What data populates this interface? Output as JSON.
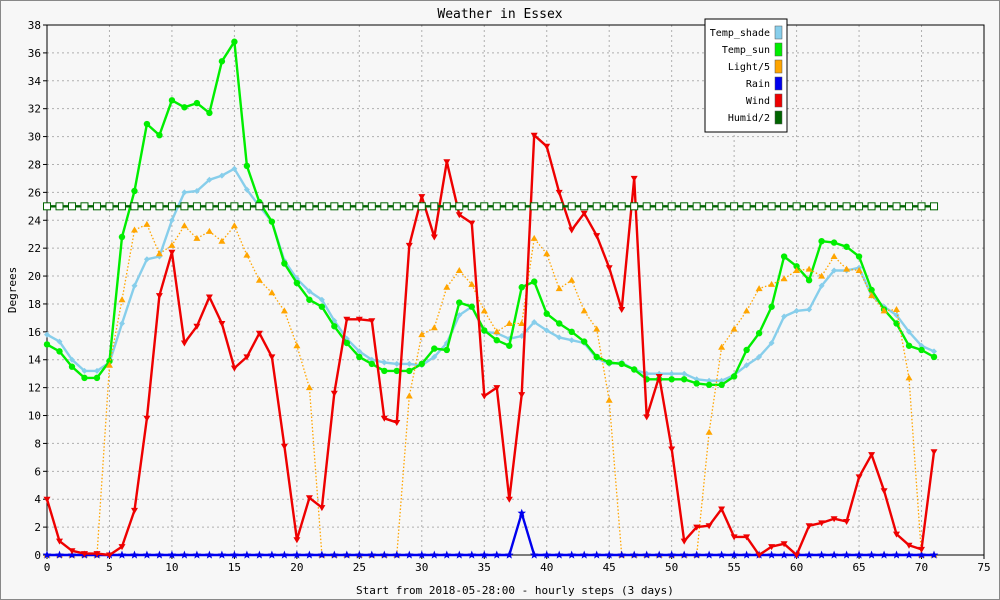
{
  "chart_data": {
    "type": "line",
    "title": "Weather in Essex",
    "xlabel": "Start from 2018-05-28:00 - hourly steps (3 days)",
    "ylabel": "Degrees",
    "xlim": [
      0,
      75
    ],
    "ylim": [
      0,
      38
    ],
    "xticks": [
      0,
      5,
      10,
      15,
      20,
      25,
      30,
      35,
      40,
      45,
      50,
      55,
      60,
      65,
      70,
      75
    ],
    "yticks": [
      0,
      2,
      4,
      6,
      8,
      10,
      12,
      14,
      16,
      18,
      20,
      22,
      24,
      26,
      28,
      30,
      32,
      34,
      36,
      38
    ],
    "grid": true,
    "legend_position": "top-right",
    "x": [
      0,
      1,
      2,
      3,
      4,
      5,
      6,
      7,
      8,
      9,
      10,
      11,
      12,
      13,
      14,
      15,
      16,
      17,
      18,
      19,
      20,
      21,
      22,
      23,
      24,
      25,
      26,
      27,
      28,
      29,
      30,
      31,
      32,
      33,
      34,
      35,
      36,
      37,
      38,
      39,
      40,
      41,
      42,
      43,
      44,
      45,
      46,
      47,
      48,
      49,
      50,
      51,
      52,
      53,
      54,
      55,
      56,
      57,
      58,
      59,
      60,
      61,
      62,
      63,
      64,
      65,
      66,
      67,
      68,
      69,
      70,
      71
    ],
    "series": [
      {
        "name": "Temp_shade",
        "color": "#87ceeb",
        "style": "solid",
        "marker": "diamond",
        "values": [
          15.8,
          15.3,
          14.0,
          13.2,
          13.2,
          13.8,
          16.6,
          19.3,
          21.2,
          21.4,
          24.0,
          26.0,
          26.1,
          26.9,
          27.2,
          27.7,
          26.2,
          25.0,
          23.9,
          21.1,
          19.8,
          18.9,
          18.3,
          16.8,
          15.5,
          14.6,
          14.0,
          13.8,
          13.7,
          13.7,
          13.6,
          14.2,
          15.2,
          17.2,
          17.8,
          16.0,
          15.9,
          15.5,
          15.7,
          16.7,
          16.1,
          15.6,
          15.4,
          15.2,
          14.1,
          13.7,
          13.8,
          13.3,
          13.0,
          13.0,
          13.0,
          13.0,
          12.6,
          12.5,
          12.5,
          12.9,
          13.6,
          14.2,
          15.2,
          17.1,
          17.5,
          17.6,
          19.3,
          20.4,
          20.4,
          20.6,
          18.6,
          17.8,
          17.2,
          16.0,
          15.0,
          14.6
        ]
      },
      {
        "name": "Temp_sun",
        "color": "#00ee00",
        "style": "solid",
        "marker": "circle",
        "values": [
          15.1,
          14.6,
          13.5,
          12.7,
          12.7,
          13.9,
          22.8,
          26.1,
          30.9,
          30.1,
          32.6,
          32.1,
          32.4,
          31.7,
          35.4,
          36.8,
          27.9,
          25.3,
          23.9,
          20.9,
          19.5,
          18.3,
          17.8,
          16.4,
          15.2,
          14.2,
          13.7,
          13.2,
          13.2,
          13.2,
          13.7,
          14.8,
          14.7,
          18.1,
          17.8,
          16.1,
          15.4,
          15.0,
          19.2,
          19.6,
          17.3,
          16.6,
          16.0,
          15.3,
          14.2,
          13.8,
          13.7,
          13.3,
          12.6,
          12.6,
          12.6,
          12.6,
          12.3,
          12.2,
          12.2,
          12.8,
          14.7,
          15.9,
          17.8,
          21.4,
          20.7,
          19.7,
          22.5,
          22.4,
          22.1,
          21.4,
          19.0,
          17.6,
          16.6,
          15.0,
          14.7,
          14.2
        ]
      },
      {
        "name": "Light/5",
        "color": "#ffa500",
        "style": "dotted",
        "marker": "triangle-up",
        "values": [
          0,
          0,
          0,
          0,
          0,
          13.6,
          18.3,
          23.3,
          23.7,
          21.6,
          22.2,
          23.6,
          22.7,
          23.2,
          22.5,
          23.6,
          21.5,
          19.7,
          18.8,
          17.5,
          15.0,
          12.0,
          0,
          0,
          0,
          0,
          0,
          0,
          0,
          11.4,
          15.8,
          16.3,
          19.2,
          20.4,
          19.4,
          17.5,
          16.0,
          16.6,
          16.6,
          22.7,
          21.6,
          19.1,
          19.7,
          17.5,
          16.2,
          11.1,
          0,
          0,
          0,
          0,
          0,
          0,
          0,
          8.8,
          14.9,
          16.2,
          17.5,
          19.1,
          19.4,
          19.8,
          20.4,
          20.5,
          20.0,
          21.4,
          20.5,
          20.4,
          18.6,
          17.5,
          17.6,
          12.7,
          0,
          0
        ]
      },
      {
        "name": "Rain",
        "color": "#0000ee",
        "style": "solid",
        "marker": "star",
        "values": [
          0,
          0,
          0,
          0,
          0,
          0,
          0,
          0,
          0,
          0,
          0,
          0,
          0,
          0,
          0,
          0,
          0,
          0,
          0,
          0,
          0,
          0,
          0,
          0,
          0,
          0,
          0,
          0,
          0,
          0,
          0,
          0,
          0,
          0,
          0,
          0,
          0,
          0,
          3.0,
          0,
          0,
          0,
          0,
          0,
          0,
          0,
          0,
          0,
          0,
          0,
          0,
          0,
          0,
          0,
          0,
          0,
          0,
          0,
          0,
          0,
          0,
          0,
          0,
          0,
          0,
          0,
          0,
          0,
          0,
          0,
          0,
          0
        ]
      },
      {
        "name": "Wind",
        "color": "#ee0000",
        "style": "solid",
        "marker": "triangle-down",
        "values": [
          4.0,
          1.0,
          0.3,
          0.1,
          0.1,
          0,
          0.6,
          3.2,
          9.8,
          18.6,
          21.7,
          15.2,
          16.4,
          18.5,
          16.6,
          13.4,
          14.2,
          15.9,
          14.2,
          7.8,
          1.1,
          4.1,
          3.4,
          11.6,
          16.9,
          16.9,
          16.8,
          9.8,
          9.5,
          22.2,
          25.7,
          22.8,
          28.2,
          24.4,
          23.8,
          11.4,
          12.0,
          4.0,
          11.5,
          30.1,
          29.3,
          26.0,
          23.3,
          24.5,
          22.9,
          20.6,
          17.6,
          27.0,
          9.9,
          12.8,
          7.6,
          1.0,
          2.0,
          2.1,
          3.3,
          1.3,
          1.3,
          0,
          0.6,
          0.8,
          0,
          2.1,
          2.3,
          2.6,
          2.4,
          5.6,
          7.2,
          4.6,
          1.5,
          0.7,
          0.4,
          7.4
        ]
      },
      {
        "name": "Humid/2",
        "color": "#006400",
        "style": "solid",
        "marker": "square",
        "values": [
          25,
          25,
          25,
          25,
          25,
          25,
          25,
          25,
          25,
          25,
          25,
          25,
          25,
          25,
          25,
          25,
          25,
          25,
          25,
          25,
          25,
          25,
          25,
          25,
          25,
          25,
          25,
          25,
          25,
          25,
          25,
          25,
          25,
          25,
          25,
          25,
          25,
          25,
          25,
          25,
          25,
          25,
          25,
          25,
          25,
          25,
          25,
          25,
          25,
          25,
          25,
          25,
          25,
          25,
          25,
          25,
          25,
          25,
          25,
          25,
          25,
          25,
          25,
          25,
          25,
          25,
          25,
          25,
          25,
          25,
          25,
          25
        ]
      }
    ]
  }
}
